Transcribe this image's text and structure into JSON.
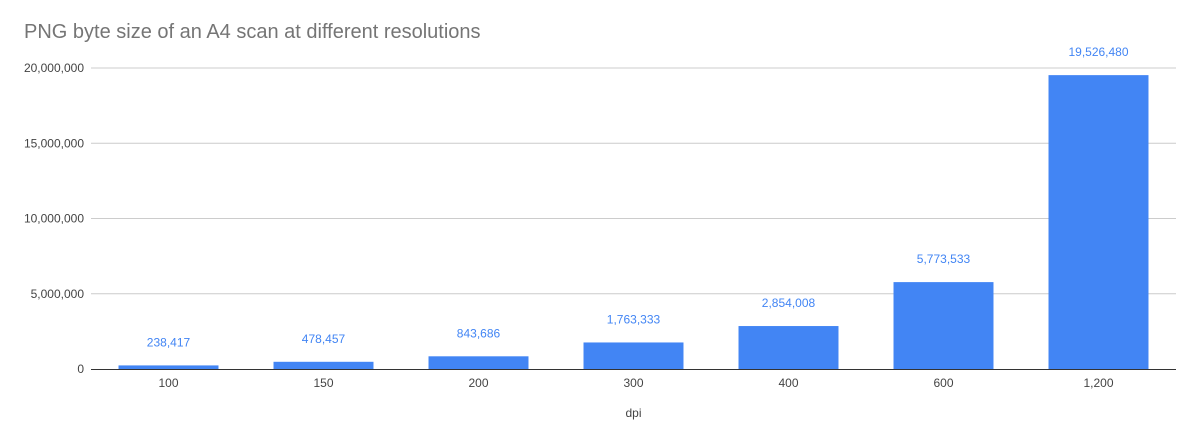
{
  "chart_data": {
    "type": "bar",
    "title": "PNG byte size of an A4 scan at different resolutions",
    "xlabel": "dpi",
    "ylabel": "",
    "categories": [
      "100",
      "150",
      "200",
      "300",
      "400",
      "600",
      "1,200"
    ],
    "values": [
      238417,
      478457,
      843686,
      1763333,
      2854008,
      5773533,
      19526480
    ],
    "data_labels": [
      "238,417",
      "478,457",
      "843,686",
      "1,763,333",
      "2,854,008",
      "5,773,533",
      "19,526,480"
    ],
    "y_ticks": [
      0,
      5000000,
      10000000,
      15000000,
      20000000
    ],
    "y_tick_labels": [
      "0",
      "5,000,000",
      "10,000,000",
      "15,000,000",
      "20,000,000"
    ],
    "ylim": [
      0,
      20000000
    ],
    "grid": true,
    "legend": "none",
    "colors": {
      "bar": "#4285f4",
      "data_label": "#4285f4",
      "grid": "#cccccc",
      "axis": "#333333",
      "title": "#757575",
      "tick": "#444444"
    }
  }
}
